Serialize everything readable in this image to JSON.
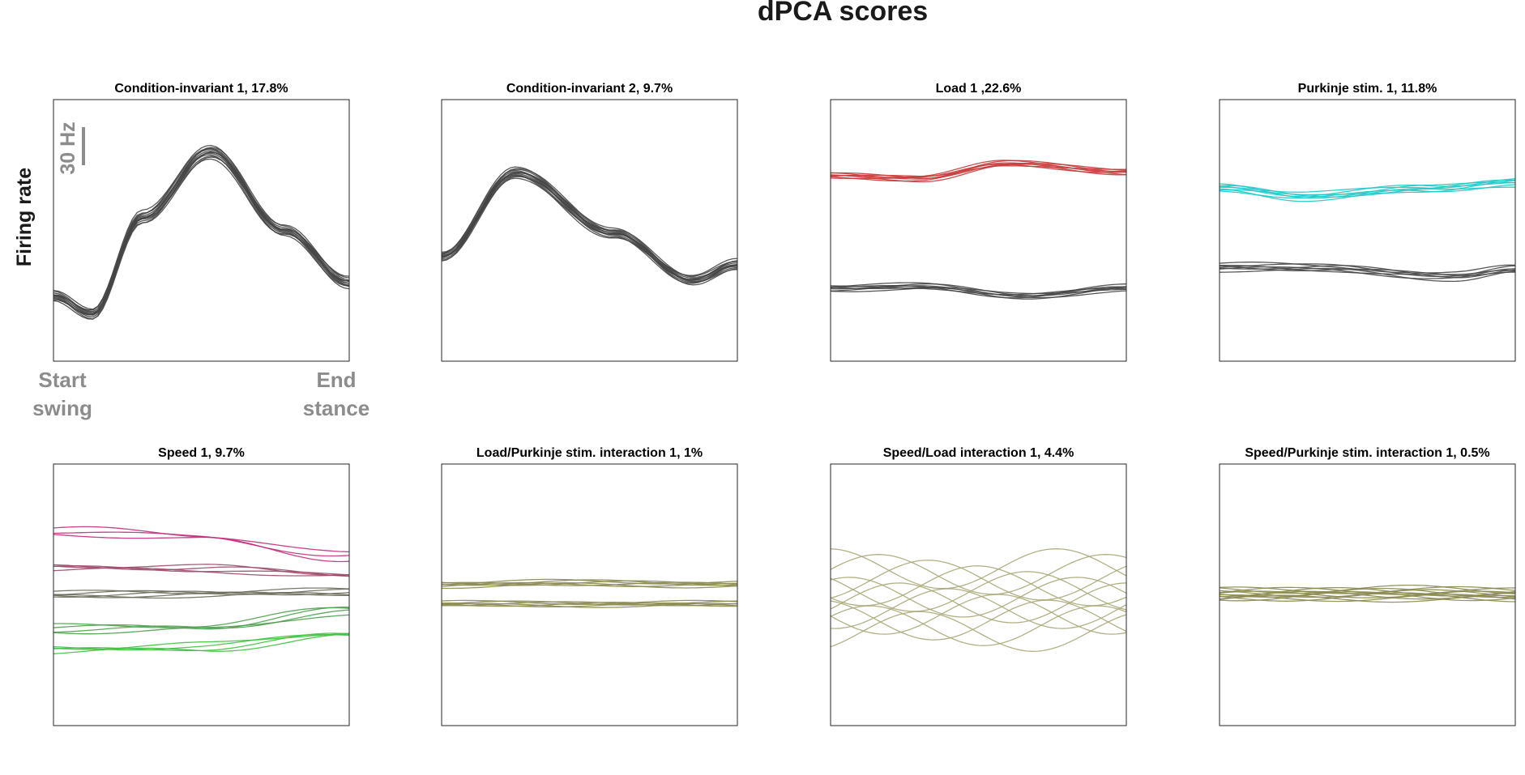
{
  "figure": {
    "title": "dPCA scores",
    "ylabel": "Firing rate",
    "scale_bar_label": "30 Hz",
    "x_start_label": [
      "Start",
      "swing"
    ],
    "x_end_label": [
      "End",
      "stance"
    ]
  },
  "chart_data": [
    {
      "type": "line",
      "title": "Condition-invariant 1, 17.8%",
      "x_range": [
        0,
        1
      ],
      "ylim": [
        0,
        1
      ],
      "grid": false,
      "groups": [
        {
          "color": "#454545",
          "count": 14,
          "spread": 0.015,
          "base": [
            [
              0,
              0.25
            ],
            [
              0.13,
              0.18
            ],
            [
              0.3,
              0.55
            ],
            [
              0.53,
              0.8
            ],
            [
              0.78,
              0.5
            ],
            [
              1,
              0.3
            ]
          ]
        }
      ]
    },
    {
      "type": "line",
      "title": "Condition-invariant 2, 9.7%",
      "x_range": [
        0,
        1
      ],
      "ylim": [
        0,
        1
      ],
      "grid": false,
      "groups": [
        {
          "color": "#454545",
          "count": 14,
          "spread": 0.012,
          "base": [
            [
              0,
              0.4
            ],
            [
              0.25,
              0.72
            ],
            [
              0.58,
              0.49
            ],
            [
              0.85,
              0.31
            ],
            [
              1,
              0.37
            ]
          ]
        }
      ]
    },
    {
      "type": "line",
      "title": "Load 1 ,22.6%",
      "x_range": [
        0,
        1
      ],
      "ylim": [
        0,
        1
      ],
      "grid": false,
      "groups": [
        {
          "color": "#c43a3a",
          "count": 7,
          "spread": 0.007,
          "base": [
            [
              0,
              0.71
            ],
            [
              0.3,
              0.7
            ],
            [
              0.6,
              0.755
            ],
            [
              1,
              0.725
            ]
          ]
        },
        {
          "color": "#454545",
          "count": 7,
          "spread": 0.007,
          "base": [
            [
              0,
              0.28
            ],
            [
              0.3,
              0.285
            ],
            [
              0.65,
              0.25
            ],
            [
              1,
              0.28
            ]
          ]
        }
      ]
    },
    {
      "type": "line",
      "title": "Purkinje stim. 1, 11.8%",
      "x_range": [
        0,
        1
      ],
      "ylim": [
        0,
        1
      ],
      "grid": false,
      "groups": [
        {
          "color": "#1ec8c8",
          "count": 7,
          "spread": 0.01,
          "base": [
            [
              0,
              0.665
            ],
            [
              0.3,
              0.63
            ],
            [
              0.7,
              0.66
            ],
            [
              1,
              0.685
            ]
          ]
        },
        {
          "color": "#454545",
          "count": 7,
          "spread": 0.01,
          "base": [
            [
              0,
              0.36
            ],
            [
              0.35,
              0.355
            ],
            [
              0.8,
              0.325
            ],
            [
              1,
              0.35
            ]
          ]
        }
      ]
    },
    {
      "type": "line",
      "title": "Speed 1, 9.7%",
      "x_range": [
        0,
        1
      ],
      "ylim": [
        0,
        1
      ],
      "grid": false,
      "groups": [
        {
          "color": "#c0307a",
          "count": 3,
          "spread": 0.01,
          "base": [
            [
              0,
              0.745
            ],
            [
              0.5,
              0.72
            ],
            [
              1,
              0.645
            ]
          ]
        },
        {
          "color": "#9a4a6a",
          "count": 4,
          "spread": 0.008,
          "base": [
            [
              0,
              0.605
            ],
            [
              0.5,
              0.6
            ],
            [
              1,
              0.575
            ]
          ]
        },
        {
          "color": "#6a6a5a",
          "count": 5,
          "spread": 0.008,
          "base": [
            [
              0,
              0.5
            ],
            [
              0.5,
              0.505
            ],
            [
              1,
              0.51
            ]
          ]
        },
        {
          "color": "#4ea04e",
          "count": 4,
          "spread": 0.01,
          "base": [
            [
              0,
              0.37
            ],
            [
              0.5,
              0.375
            ],
            [
              1,
              0.44
            ]
          ]
        },
        {
          "color": "#40c040",
          "count": 4,
          "spread": 0.01,
          "base": [
            [
              0,
              0.29
            ],
            [
              0.5,
              0.3
            ],
            [
              1,
              0.35
            ]
          ]
        }
      ]
    },
    {
      "type": "line",
      "title": "Load/Purkinje stim. interaction 1, 1%",
      "x_range": [
        0,
        1
      ],
      "ylim": [
        0,
        1
      ],
      "grid": false,
      "groups": [
        {
          "color": "#8a8a50",
          "count": 6,
          "spread": 0.007,
          "base": [
            [
              0,
              0.54
            ],
            [
              0.5,
              0.545
            ],
            [
              1,
              0.54
            ]
          ]
        },
        {
          "color": "#8a8a50",
          "count": 6,
          "spread": 0.006,
          "base": [
            [
              0,
              0.465
            ],
            [
              0.5,
              0.465
            ],
            [
              1,
              0.465
            ]
          ]
        }
      ]
    },
    {
      "type": "line",
      "title": "Speed/Load interaction 1, 4.4%",
      "x_range": [
        0,
        1
      ],
      "ylim": [
        0,
        1
      ],
      "grid": false,
      "groups": [
        {
          "color": "#a8a878",
          "count": 12,
          "spread": 0.12,
          "base": [
            [
              0,
              0.48
            ],
            [
              0.5,
              0.48
            ],
            [
              1,
              0.48
            ]
          ]
        }
      ]
    },
    {
      "type": "line",
      "title": "Speed/Purkinje stim. interaction 1, 0.5%",
      "x_range": [
        0,
        1
      ],
      "ylim": [
        0,
        1
      ],
      "grid": false,
      "groups": [
        {
          "color": "#8a8a50",
          "count": 12,
          "spread": 0.018,
          "base": [
            [
              0,
              0.5
            ],
            [
              0.5,
              0.505
            ],
            [
              1,
              0.5
            ]
          ]
        }
      ]
    }
  ]
}
